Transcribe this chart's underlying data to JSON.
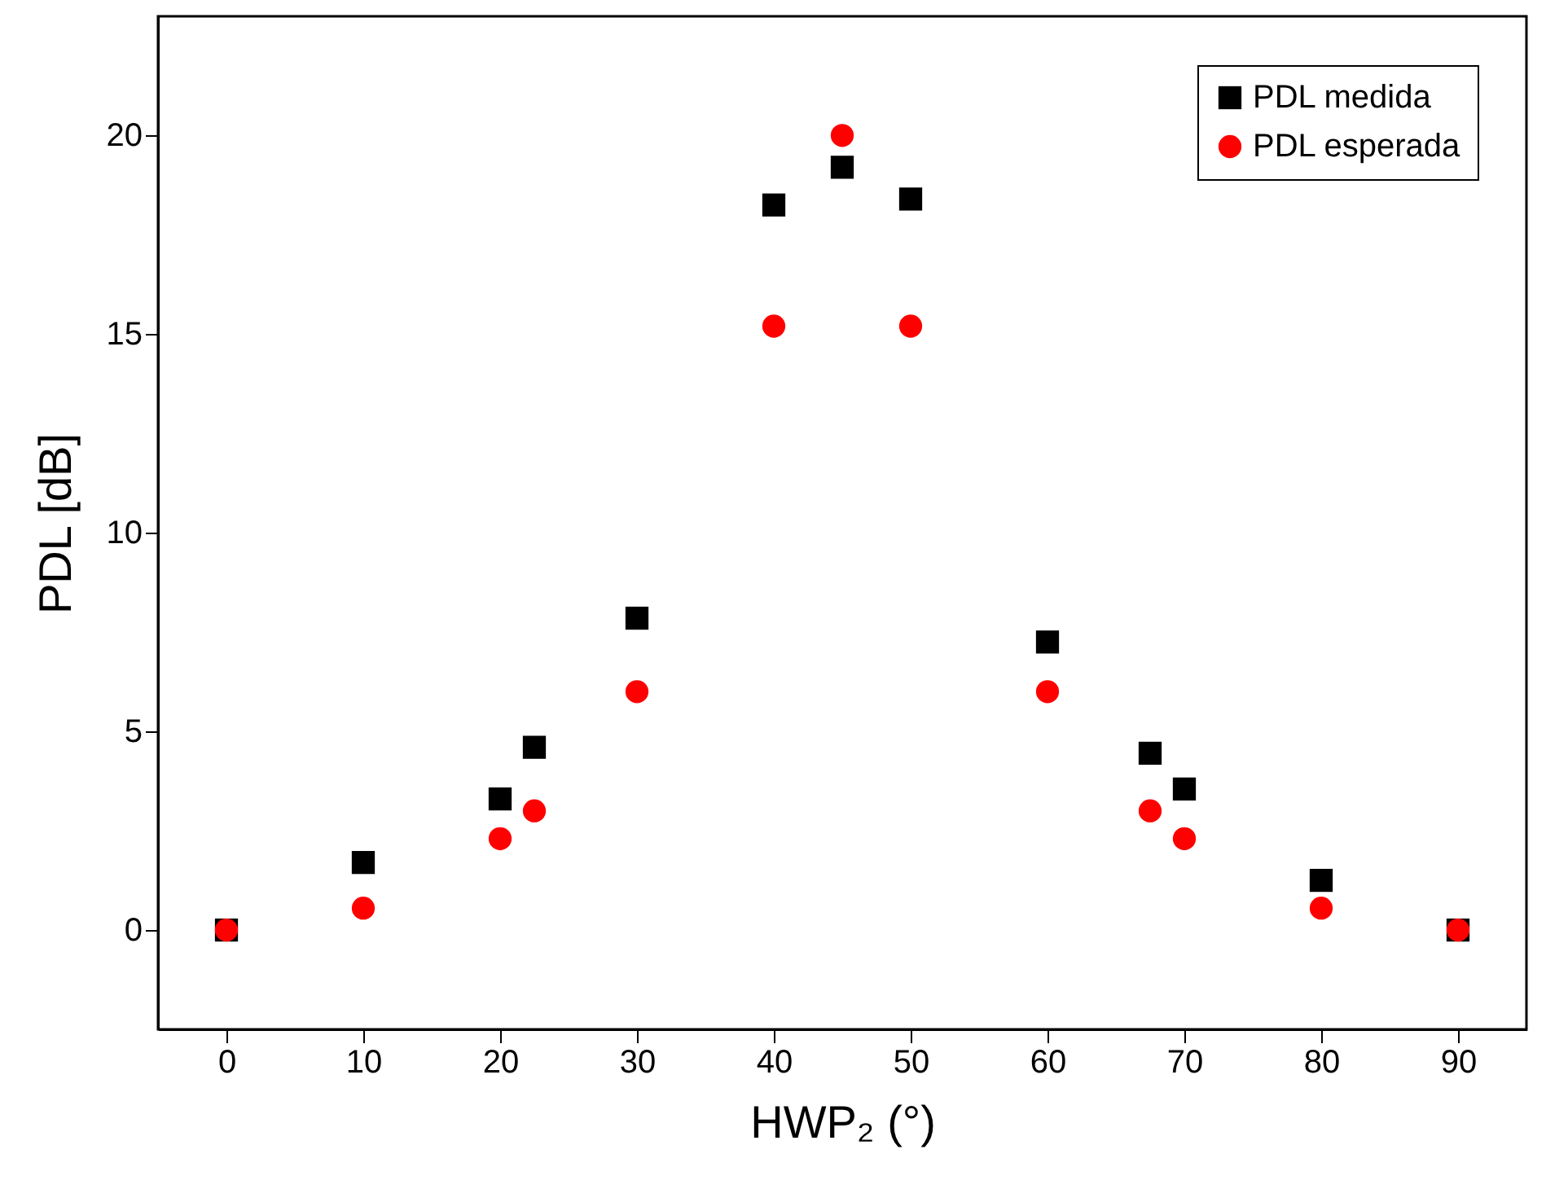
{
  "chart_data": {
    "type": "scatter",
    "xlabel": "HWP₂ (°)",
    "ylabel": "PDL [dB]",
    "x": [
      0,
      10,
      20,
      22.5,
      30,
      40,
      45,
      50,
      60,
      67.5,
      70,
      80,
      90
    ],
    "series": [
      {
        "name": "PDL medida",
        "color": "#000000",
        "marker": "square",
        "values": [
          0,
          1.7,
          3.3,
          4.6,
          7.85,
          18.25,
          19.2,
          18.4,
          7.25,
          4.45,
          3.55,
          1.25,
          0
        ]
      },
      {
        "name": "PDL esperada",
        "color": "#ff0000",
        "marker": "circle",
        "values": [
          0,
          0.55,
          2.3,
          3.0,
          6.0,
          15.2,
          20,
          15.2,
          6.0,
          3.0,
          2.3,
          0.55,
          0
        ]
      }
    ],
    "xlim": [
      -5,
      95
    ],
    "xticks": [
      0,
      10,
      20,
      30,
      40,
      50,
      60,
      70,
      80,
      90
    ],
    "ylim": [
      -2.5,
      23
    ],
    "yticks": [
      0,
      5,
      10,
      15,
      20
    ],
    "grid": false,
    "legend": "top right"
  }
}
